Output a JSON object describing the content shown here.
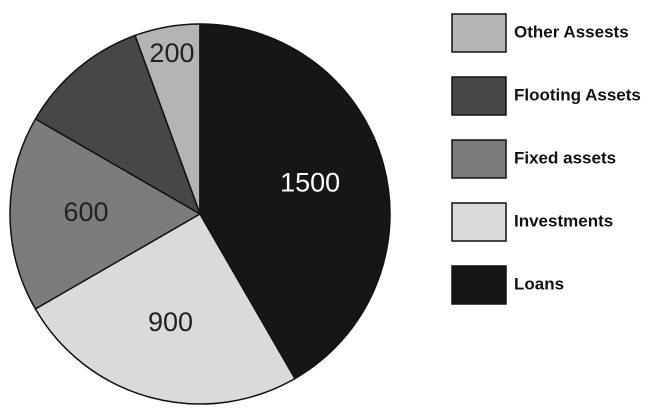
{
  "chart_data": {
    "type": "pie",
    "categories": [
      "Other Assests",
      "Flooting Assets",
      "Fixed assets",
      "Investments",
      "Loans"
    ],
    "values": [
      200,
      400,
      600,
      900,
      1500
    ],
    "value_labels": [
      "200",
      null,
      "600",
      "900",
      "1500"
    ],
    "colors": [
      "#b4b4b4",
      "#474747",
      "#7c7c7c",
      "#dadada",
      "#161616"
    ],
    "start_angle": 0,
    "direction": "counterclockwise",
    "legend": "right"
  }
}
